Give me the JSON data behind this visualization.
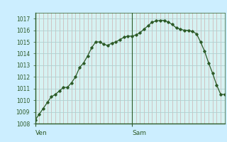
{
  "background_color": "#cceeff",
  "plot_bg_color": "#d6f2f2",
  "line_color": "#2d5a27",
  "marker_color": "#2d5a27",
  "grid_major_color": "#b0d0d0",
  "grid_minor_color_x": "#c8a0a0",
  "grid_minor_color_y": "#b8d0d0",
  "axis_color": "#2d5a27",
  "tick_label_color": "#2d5a27",
  "ylim": [
    1008,
    1017.5
  ],
  "yticks": [
    1008,
    1009,
    1010,
    1011,
    1012,
    1013,
    1014,
    1015,
    1016,
    1017
  ],
  "xtick_labels": [
    "Ven",
    "Sam"
  ],
  "xtick_positions": [
    0,
    24
  ],
  "x_values": [
    0,
    1,
    2,
    3,
    4,
    5,
    6,
    7,
    8,
    9,
    10,
    11,
    12,
    13,
    14,
    15,
    16,
    17,
    18,
    19,
    20,
    21,
    22,
    23,
    24,
    25,
    26,
    27,
    28,
    29,
    30,
    31,
    32,
    33,
    34,
    35,
    36,
    37,
    38,
    39,
    40,
    41,
    42,
    43,
    44,
    45,
    46,
    47
  ],
  "y_values": [
    1008.3,
    1008.8,
    1009.3,
    1009.8,
    1010.3,
    1010.5,
    1010.8,
    1011.1,
    1011.1,
    1011.5,
    1012.0,
    1012.8,
    1013.2,
    1013.8,
    1014.5,
    1015.0,
    1015.0,
    1014.8,
    1014.7,
    1014.9,
    1015.0,
    1015.2,
    1015.4,
    1015.5,
    1015.5,
    1015.6,
    1015.8,
    1016.1,
    1016.4,
    1016.7,
    1016.8,
    1016.85,
    1016.85,
    1016.7,
    1016.5,
    1016.2,
    1016.1,
    1016.0,
    1016.0,
    1015.9,
    1015.7,
    1015.0,
    1014.2,
    1013.2,
    1012.3,
    1011.3,
    1010.5,
    1010.5
  ],
  "tick_fontsize": 5.5,
  "xlabel_fontsize": 6.5
}
